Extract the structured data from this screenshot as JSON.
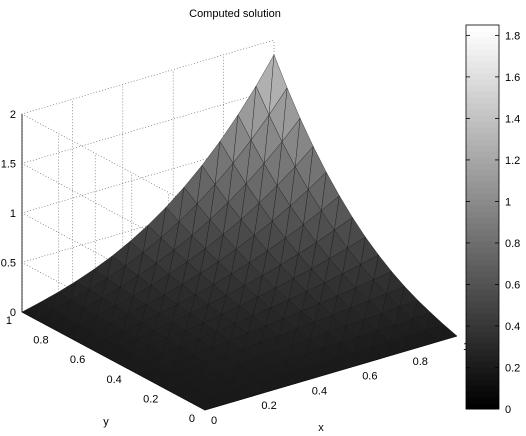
{
  "chart_data": {
    "type": "surface",
    "title": "Computed solution",
    "xlabel": "x",
    "ylabel": "y",
    "zlabel": "",
    "xlim": [
      0,
      1
    ],
    "ylim": [
      0,
      1
    ],
    "zlim": [
      0,
      2
    ],
    "grid": true,
    "x_ticks": [
      "0",
      "0.2",
      "0.4",
      "0.6",
      "0.8",
      "1"
    ],
    "y_ticks": [
      "0",
      "0.2",
      "0.4",
      "0.6",
      "0.8",
      "1"
    ],
    "z_ticks": [
      "0",
      "0.5",
      "1",
      "1.5",
      "2"
    ],
    "colorbar": {
      "colormap": "gray",
      "range": [
        0,
        1.85
      ],
      "ticks": [
        "0",
        "0.2",
        "0.4",
        "0.6",
        "0.8",
        "1",
        "1.2",
        "1.4",
        "1.6",
        "1.8"
      ]
    },
    "corner_values": [
      {
        "x": 0,
        "y": 0,
        "z": 0
      },
      {
        "x": 1,
        "y": 0,
        "z": 0
      },
      {
        "x": 0,
        "y": 1,
        "z": 0
      },
      {
        "x": 1,
        "y": 1,
        "z": 1.85
      }
    ]
  }
}
